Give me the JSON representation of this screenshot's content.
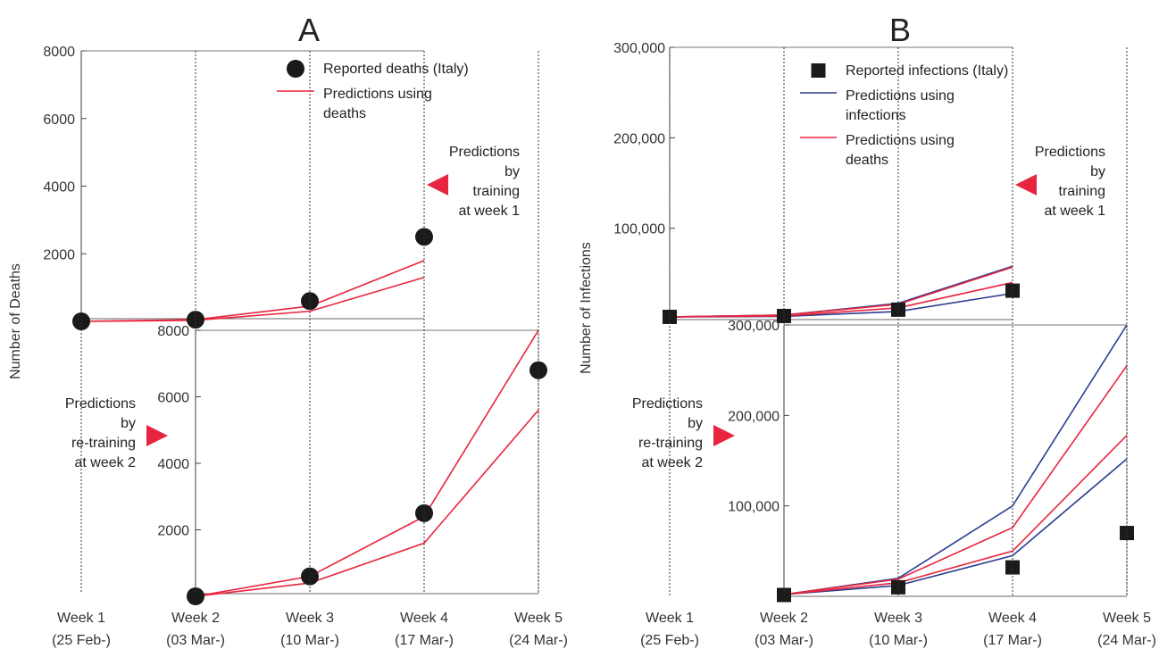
{
  "chart_data": [
    {
      "type": "line",
      "panel": "A",
      "title": "A",
      "ylabel": "Number of Deaths",
      "x_ticks": [
        {
          "label": "Week 1",
          "date": "(25 Feb-)"
        },
        {
          "label": "Week 2",
          "date": "(03 Mar-)"
        },
        {
          "label": "Week 3",
          "date": "(10 Mar-)"
        },
        {
          "label": "Week 4",
          "date": "(17 Mar-)"
        },
        {
          "label": "Week 5",
          "date": "(24 Mar-)"
        }
      ],
      "legend": {
        "placement": "top-right",
        "entries": [
          {
            "label": "Reported deaths (Italy)",
            "marker": "circle",
            "color": "#1a1a1a"
          },
          {
            "label_lines": [
              "Predictions using",
              "deaths"
            ],
            "marker": "line",
            "color": "#e8253f"
          }
        ]
      },
      "subplots": [
        {
          "name": "top",
          "annotation": [
            "Predictions",
            "by",
            "training",
            "at week 1"
          ],
          "arrow_color": "#e8253f",
          "ylim": [
            0,
            8000
          ],
          "yticks": [
            "2000",
            "4000",
            "6000",
            "8000"
          ],
          "ytick_values": [
            2000,
            4000,
            6000,
            8000
          ],
          "reported": [
            {
              "week": 1,
              "value": 0
            },
            {
              "week": 2,
              "value": 50
            },
            {
              "week": 3,
              "value": 600
            },
            {
              "week": 4,
              "value": 2500
            }
          ],
          "predictions": [
            {
              "color": "#e8253f",
              "points": [
                {
                  "week": 1,
                  "value": 0
                },
                {
                  "week": 2,
                  "value": 50
                },
                {
                  "week": 3,
                  "value": 450
                },
                {
                  "week": 4,
                  "value": 1800
                }
              ]
            },
            {
              "color": "#e8253f",
              "points": [
                {
                  "week": 1,
                  "value": 0
                },
                {
                  "week": 2,
                  "value": 30
                },
                {
                  "week": 3,
                  "value": 300
                },
                {
                  "week": 4,
                  "value": 1300
                }
              ]
            }
          ]
        },
        {
          "name": "bottom",
          "annotation": [
            "Predictions",
            "by",
            "re-training",
            "at week 2"
          ],
          "arrow_color": "#e8253f",
          "ylim": [
            0,
            8000
          ],
          "yticks": [
            "2000",
            "4000",
            "6000",
            "8000"
          ],
          "ytick_values": [
            2000,
            4000,
            6000,
            8000
          ],
          "reported": [
            {
              "week": 2,
              "value": 0
            },
            {
              "week": 3,
              "value": 600
            },
            {
              "week": 4,
              "value": 2500
            },
            {
              "week": 5,
              "value": 6800
            }
          ],
          "predictions": [
            {
              "color": "#e8253f",
              "points": [
                {
                  "week": 2,
                  "value": 0
                },
                {
                  "week": 3,
                  "value": 600
                },
                {
                  "week": 4,
                  "value": 2400
                },
                {
                  "week": 5,
                  "value": 8000
                }
              ]
            },
            {
              "color": "#e8253f",
              "points": [
                {
                  "week": 2,
                  "value": 0
                },
                {
                  "week": 3,
                  "value": 400
                },
                {
                  "week": 4,
                  "value": 1600
                },
                {
                  "week": 5,
                  "value": 5600
                }
              ]
            }
          ]
        }
      ]
    },
    {
      "type": "line",
      "panel": "B",
      "title": "B",
      "ylabel": "Number of Infections",
      "x_ticks": [
        {
          "label": "Week 1",
          "date": "(25 Feb-)"
        },
        {
          "label": "Week 2",
          "date": "(03 Mar-)"
        },
        {
          "label": "Week 3",
          "date": "(10 Mar-)"
        },
        {
          "label": "Week 4",
          "date": "(17 Mar-)"
        },
        {
          "label": "Week 5",
          "date": "(24 Mar-)"
        }
      ],
      "legend": {
        "placement": "top-right",
        "entries": [
          {
            "label": "Reported infections (Italy)",
            "marker": "square",
            "color": "#1a1a1a"
          },
          {
            "label_lines": [
              "Predictions using",
              "infections"
            ],
            "marker": "line",
            "color": "#2a3d8f"
          },
          {
            "label_lines": [
              "Predictions using",
              "deaths"
            ],
            "marker": "line",
            "color": "#e8253f"
          }
        ]
      },
      "subplots": [
        {
          "name": "top",
          "annotation": [
            "Predictions",
            "by",
            "training",
            "at week 1"
          ],
          "arrow_color": "#e8253f",
          "ylim": [
            0,
            300000
          ],
          "yticks": [
            "100,000",
            "200,000",
            "300,000"
          ],
          "ytick_values": [
            100000,
            200000,
            300000
          ],
          "reported": [
            {
              "week": 1,
              "value": 2000
            },
            {
              "week": 2,
              "value": 3000
            },
            {
              "week": 3,
              "value": 10000
            },
            {
              "week": 4,
              "value": 31000
            }
          ],
          "predictions": [
            {
              "color": "#2a3d8f",
              "points": [
                {
                  "week": 1,
                  "value": 2000
                },
                {
                  "week": 2,
                  "value": 4000
                },
                {
                  "week": 3,
                  "value": 17000
                },
                {
                  "week": 4,
                  "value": 58000
                }
              ]
            },
            {
              "color": "#2a3d8f",
              "points": [
                {
                  "week": 1,
                  "value": 2000
                },
                {
                  "week": 2,
                  "value": 2500
                },
                {
                  "week": 3,
                  "value": 8000
                },
                {
                  "week": 4,
                  "value": 28000
                }
              ]
            },
            {
              "color": "#e8253f",
              "points": [
                {
                  "week": 1,
                  "value": 2000
                },
                {
                  "week": 2,
                  "value": 4000
                },
                {
                  "week": 3,
                  "value": 16000
                },
                {
                  "week": 4,
                  "value": 57000
                }
              ]
            },
            {
              "color": "#e8253f",
              "points": [
                {
                  "week": 1,
                  "value": 2000
                },
                {
                  "week": 2,
                  "value": 3000
                },
                {
                  "week": 3,
                  "value": 12000
                },
                {
                  "week": 4,
                  "value": 40000
                }
              ]
            }
          ]
        },
        {
          "name": "bottom",
          "annotation": [
            "Predictions",
            "by",
            "re-training",
            "at week 2"
          ],
          "arrow_color": "#e8253f",
          "ylim": [
            0,
            300000
          ],
          "yticks": [
            "100,000",
            "200,000",
            "300,000"
          ],
          "ytick_values": [
            100000,
            200000,
            300000
          ],
          "reported": [
            {
              "week": 2,
              "value": 1500
            },
            {
              "week": 3,
              "value": 10000
            },
            {
              "week": 4,
              "value": 32000
            },
            {
              "week": 5,
              "value": 70000
            }
          ],
          "predictions": [
            {
              "color": "#2a3d8f",
              "points": [
                {
                  "week": 2,
                  "value": 2000
                },
                {
                  "week": 3,
                  "value": 20000
                },
                {
                  "week": 4,
                  "value": 100000
                },
                {
                  "week": 5,
                  "value": 300000
                }
              ]
            },
            {
              "color": "#2a3d8f",
              "points": [
                {
                  "week": 2,
                  "value": 2000
                },
                {
                  "week": 3,
                  "value": 12000
                },
                {
                  "week": 4,
                  "value": 45000
                },
                {
                  "week": 5,
                  "value": 152000
                }
              ]
            },
            {
              "color": "#e8253f",
              "points": [
                {
                  "week": 2,
                  "value": 2000
                },
                {
                  "week": 3,
                  "value": 19000
                },
                {
                  "week": 4,
                  "value": 76000
                },
                {
                  "week": 5,
                  "value": 255000
                }
              ]
            },
            {
              "color": "#e8253f",
              "points": [
                {
                  "week": 2,
                  "value": 2000
                },
                {
                  "week": 3,
                  "value": 15000
                },
                {
                  "week": 4,
                  "value": 50000
                },
                {
                  "week": 5,
                  "value": 178000
                }
              ]
            }
          ]
        }
      ]
    }
  ]
}
